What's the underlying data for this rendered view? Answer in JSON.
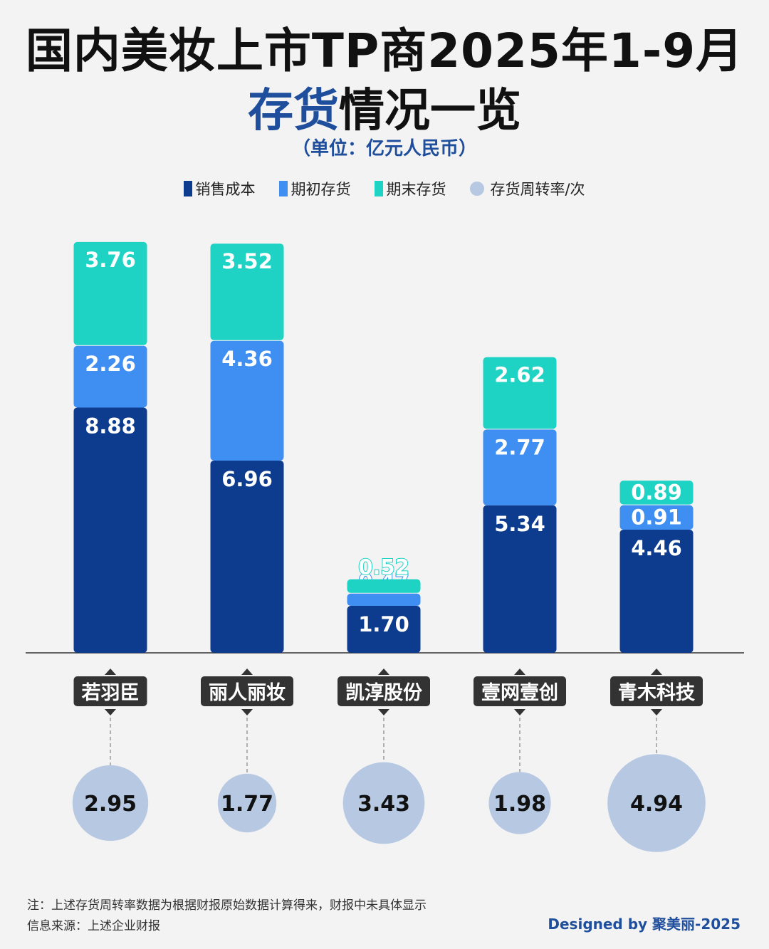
{
  "header": {
    "title_line1": "国内美妆上市TP商2025年1-9月",
    "title_line2_highlight": "存货",
    "title_line2_rest": "情况一览",
    "unit": "（单位：亿元人民币）"
  },
  "legend": [
    {
      "label": "销售成本",
      "color": "#0d3b8e",
      "shape": "rect"
    },
    {
      "label": "期初存货",
      "color": "#3f8ef2",
      "shape": "rect"
    },
    {
      "label": "期末存货",
      "color": "#1ed3c4",
      "shape": "rect"
    },
    {
      "label": "存货周转率/次",
      "color": "#b6c8e2",
      "shape": "circle"
    }
  ],
  "chart_data": {
    "type": "bar",
    "stacked": true,
    "categories": [
      "若羽臣",
      "丽人丽妆",
      "凯淳股份",
      "壹网壹创",
      "青木科技"
    ],
    "series": [
      {
        "name": "销售成本",
        "color": "#0d3b8e",
        "values": [
          8.88,
          6.96,
          1.7,
          5.34,
          4.46
        ]
      },
      {
        "name": "期初存货",
        "color": "#3f8ef2",
        "values": [
          2.26,
          4.36,
          0.47,
          2.77,
          0.91
        ]
      },
      {
        "name": "期末存货",
        "color": "#1ed3c4",
        "values": [
          3.76,
          3.52,
          0.52,
          2.62,
          0.89
        ]
      }
    ],
    "turnover": {
      "name": "存货周转率/次",
      "color": "#b6c8e2",
      "values": [
        2.95,
        1.77,
        3.43,
        1.98,
        4.94
      ]
    },
    "value_labels": [
      [
        "8.88",
        "6.96",
        "1.70",
        "5.34",
        "4.46"
      ],
      [
        "2.26",
        "4.36",
        "0.47",
        "2.77",
        "0.91"
      ],
      [
        "3.76",
        "3.52",
        "0.52",
        "2.62",
        "0.89"
      ]
    ],
    "turnover_labels": [
      "2.95",
      "1.77",
      "3.43",
      "1.98",
      "4.94"
    ],
    "ylim": [
      0,
      15
    ]
  },
  "footer": {
    "note_line1": "注：上述存货周转率数据为根据财报原始数据计算得来，财报中未具体显示",
    "note_line2": "信息来源：上述企业财报",
    "credit": "Designed by 聚美丽-2025"
  }
}
